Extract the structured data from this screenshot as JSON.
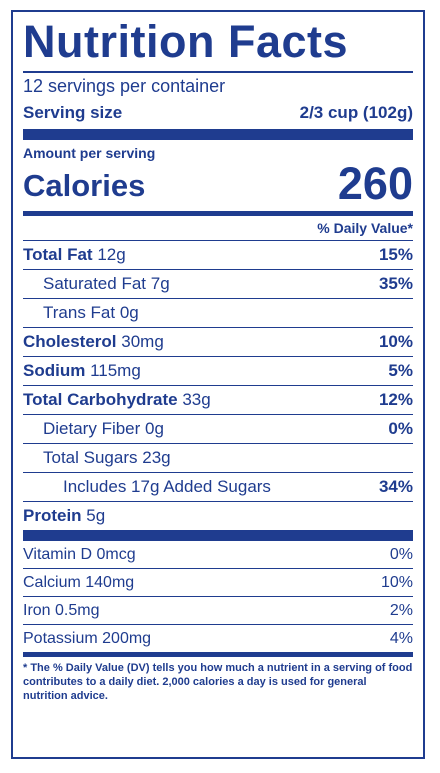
{
  "title": "Nutrition Facts",
  "servings_per_container": "12 servings per container",
  "serving_size": {
    "label": "Serving size",
    "value": "2/3 cup (102g)"
  },
  "amount_per_serving": "Amount per serving",
  "calories": {
    "label": "Calories",
    "value": "260"
  },
  "daily_value_header": "% Daily Value*",
  "nutrients": [
    {
      "name": "Total Fat",
      "amount": "12g",
      "dv": "15%"
    },
    {
      "name": "Saturated Fat",
      "amount": "7g",
      "dv": "35%"
    },
    {
      "name": "Trans Fat",
      "amount": "0g",
      "dv": ""
    },
    {
      "name": "Cholesterol",
      "amount": "30mg",
      "dv": "10%"
    },
    {
      "name": "Sodium",
      "amount": "115mg",
      "dv": "5%"
    },
    {
      "name": "Total Carbohydrate",
      "amount": "33g",
      "dv": "12%"
    },
    {
      "name": "Dietary Fiber",
      "amount": "0g",
      "dv": "0%"
    },
    {
      "name": "Total Sugars",
      "amount": "23g",
      "dv": ""
    },
    {
      "name": "Includes 17g Added Sugars",
      "amount": "",
      "dv": "34%"
    },
    {
      "name": "Protein",
      "amount": "5g",
      "dv": ""
    }
  ],
  "vitamins": [
    {
      "name": "Vitamin D",
      "amount": "0mcg",
      "dv": "0%"
    },
    {
      "name": "Calcium",
      "amount": "140mg",
      "dv": "10%"
    },
    {
      "name": "Iron",
      "amount": "0.5mg",
      "dv": "2%"
    },
    {
      "name": "Potassium",
      "amount": "200mg",
      "dv": "4%"
    }
  ],
  "footnote": "* The % Daily Value (DV) tells you how much a nutrient in a serving of food contributes to a daily diet. 2,000 calories a day is used for general nutrition advice.",
  "colors": {
    "ink": "#1f3c8f",
    "background": "#ffffff"
  }
}
